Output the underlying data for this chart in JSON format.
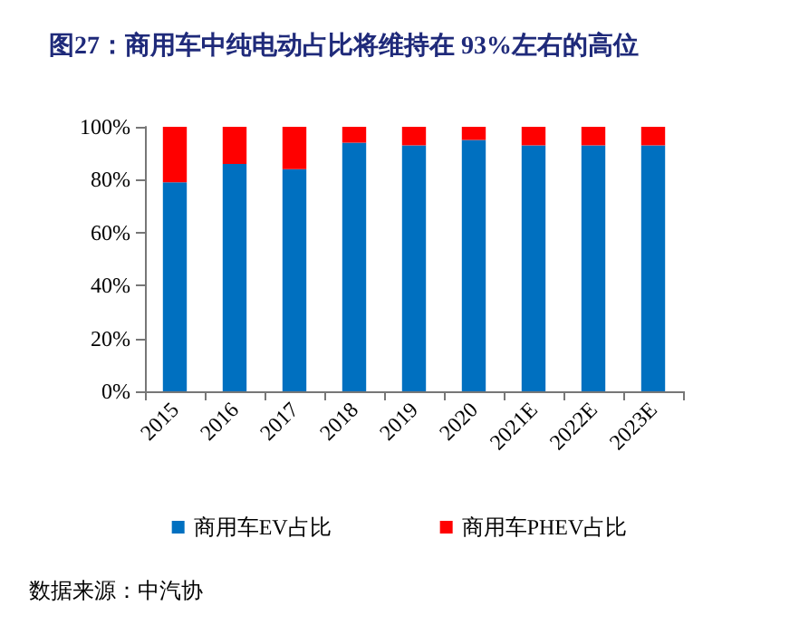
{
  "chart_data": {
    "type": "bar",
    "title": "图27：商用车中纯电动占比将维持在 93%左右的高位",
    "categories": [
      "2015",
      "2016",
      "2017",
      "2018",
      "2019",
      "2020",
      "2021E",
      "2022E",
      "2023E"
    ],
    "series": [
      {
        "name": "商用车EV占比",
        "color": "#0070c0",
        "values": [
          79,
          86,
          84,
          94,
          93,
          95,
          93,
          93,
          93
        ]
      },
      {
        "name": "商用车PHEV占比",
        "color": "#ff0000",
        "values": [
          21,
          14,
          16,
          6,
          7,
          5,
          7,
          7,
          7
        ]
      }
    ],
    "stacked": true,
    "ylim": [
      0,
      100
    ],
    "yticks": [
      {
        "value": 0,
        "label": "0%"
      },
      {
        "value": 20,
        "label": "20%"
      },
      {
        "value": 40,
        "label": "40%"
      },
      {
        "value": 60,
        "label": "60%"
      },
      {
        "value": 80,
        "label": "80%"
      },
      {
        "value": 100,
        "label": "100%"
      }
    ],
    "grid": false,
    "legend": "bottom",
    "annotations": [
      "数据来源：中汽协"
    ]
  }
}
